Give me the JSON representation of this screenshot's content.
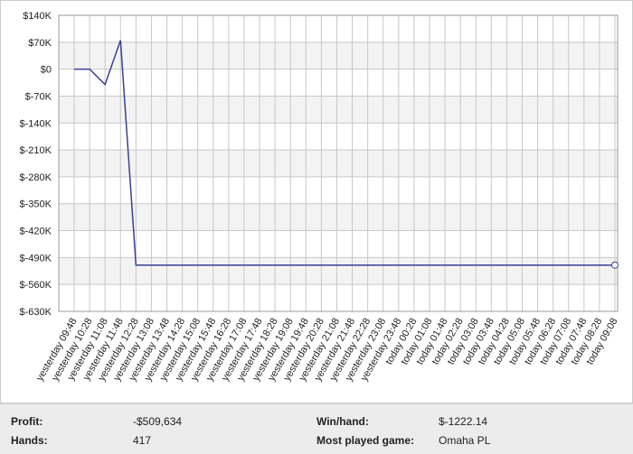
{
  "chart_data": {
    "type": "line",
    "categories": [
      "yesterday 09:48",
      "yesterday 10:28",
      "yesterday 11:08",
      "yesterday 11:48",
      "yesterday 12:28",
      "yesterday 13:08",
      "yesterday 13:48",
      "yesterday 14:28",
      "yesterday 15:08",
      "yesterday 15:48",
      "yesterday 16:28",
      "yesterday 17:08",
      "yesterday 17:48",
      "yesterday 18:28",
      "yesterday 19:08",
      "yesterday 19:48",
      "yesterday 20:28",
      "yesterday 21:08",
      "yesterday 21:48",
      "yesterday 22:28",
      "yesterday 23:08",
      "yesterday 23:48",
      "today 00:28",
      "today 01:08",
      "today 01:48",
      "today 02:28",
      "today 03:08",
      "today 03:48",
      "today 04:28",
      "today 05:08",
      "today 05:48",
      "today 06:28",
      "today 07:08",
      "today 07:48",
      "today 08:28",
      "today 09:08"
    ],
    "values": [
      0,
      0,
      -40000,
      75000,
      -509634,
      -509634,
      -509634,
      -509634,
      -509634,
      -509634,
      -509634,
      -509634,
      -509634,
      -509634,
      -509634,
      -509634,
      -509634,
      -509634,
      -509634,
      -509634,
      -509634,
      -509634,
      -509634,
      -509634,
      -509634,
      -509634,
      -509634,
      -509634,
      -509634,
      -509634,
      -509634,
      -509634,
      -509634,
      -509634,
      -509634,
      -509634
    ],
    "color": "#3b3f8f",
    "ylim": [
      -630000,
      140000
    ],
    "yticks": [
      {
        "value": 140000,
        "label": "$140K"
      },
      {
        "value": 70000,
        "label": "$70K"
      },
      {
        "value": 0,
        "label": "$0"
      },
      {
        "value": -70000,
        "label": "$-70K"
      },
      {
        "value": -140000,
        "label": "$-140K"
      },
      {
        "value": -210000,
        "label": "$-210K"
      },
      {
        "value": -280000,
        "label": "$-280K"
      },
      {
        "value": -350000,
        "label": "$-350K"
      },
      {
        "value": -420000,
        "label": "$-420K"
      },
      {
        "value": -490000,
        "label": "$-490K"
      },
      {
        "value": -560000,
        "label": "$-560K"
      },
      {
        "value": -630000,
        "label": "$-630K"
      }
    ],
    "grid": true
  },
  "stats": {
    "profit_label": "Profit:",
    "profit": "-$509,634",
    "hands_label": "Hands:",
    "hands": "417",
    "winhand_label": "Win/hand:",
    "winhand": "$-1222.14",
    "game_label": "Most played game:",
    "game": "Omaha PL"
  }
}
